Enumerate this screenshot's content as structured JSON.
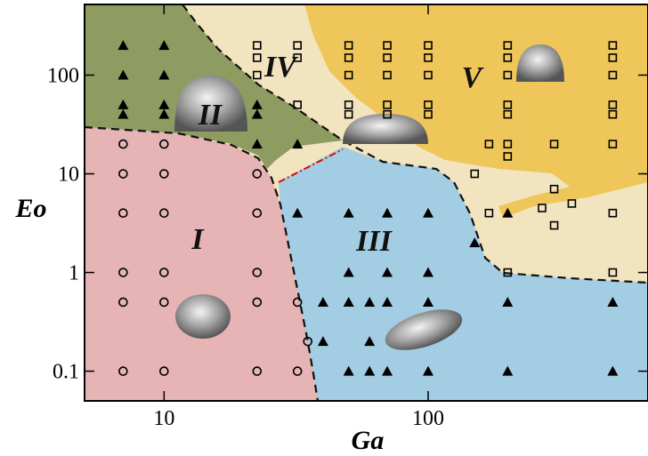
{
  "chart_data": {
    "type": "scatter",
    "x_label": "Ga",
    "y_label": "Eo",
    "xscale": "log",
    "yscale": "log",
    "xlim": [
      5,
      680
    ],
    "ylim": [
      0.05,
      520
    ],
    "xticks": [
      10,
      100
    ],
    "yticks": [
      0.1,
      1,
      10,
      100
    ],
    "annotations": [
      "I",
      "II",
      "III",
      "IV",
      "V"
    ],
    "series": [
      {
        "marker": "circle",
        "color": "#000000",
        "x": [
          7,
          7,
          7,
          7,
          7,
          7,
          10,
          10,
          10,
          10,
          10,
          10,
          22.5,
          22.5,
          22.5,
          22.5,
          22.5,
          32,
          32,
          35
        ],
        "y": [
          20,
          10,
          4,
          1,
          0.5,
          0.1,
          20,
          10,
          4,
          1,
          0.5,
          0.1,
          10,
          4,
          1,
          0.5,
          0.1,
          0.5,
          0.1,
          0.2
        ]
      },
      {
        "marker": "triangle",
        "color": "#000000",
        "x": [
          7,
          7,
          7,
          7,
          10,
          10,
          10,
          10,
          22.5,
          22.5,
          22.5,
          32,
          32,
          40,
          40,
          50,
          50,
          50,
          50,
          60,
          60,
          60,
          70,
          70,
          70,
          70,
          100,
          100,
          100,
          100,
          150,
          200,
          200,
          200,
          500,
          500
        ],
        "y": [
          200,
          100,
          50,
          40,
          200,
          100,
          50,
          40,
          50,
          40,
          20,
          20,
          4,
          0.5,
          0.2,
          4,
          1,
          0.5,
          0.1,
          0.5,
          0.2,
          0.1,
          4,
          1,
          0.5,
          0.1,
          4,
          1,
          0.5,
          0.1,
          2,
          4,
          0.5,
          0.1,
          0.5,
          0.1
        ]
      },
      {
        "marker": "square",
        "color": "#000000",
        "x": [
          22.5,
          22.5,
          22.5,
          32,
          32,
          32,
          50,
          50,
          50,
          50,
          50,
          70,
          70,
          70,
          70,
          70,
          100,
          100,
          100,
          100,
          100,
          200,
          200,
          200,
          200,
          200,
          200,
          200,
          200,
          500,
          500,
          500,
          500,
          500,
          500,
          500,
          500,
          150,
          170,
          170,
          300,
          300,
          300,
          270,
          350
        ],
        "y": [
          200,
          150,
          100,
          200,
          150,
          50,
          200,
          150,
          100,
          50,
          40,
          200,
          150,
          100,
          50,
          40,
          200,
          150,
          100,
          50,
          40,
          200,
          150,
          100,
          50,
          40,
          20,
          15,
          1,
          200,
          150,
          100,
          50,
          40,
          20,
          4,
          1,
          10,
          20,
          4,
          20,
          7,
          3,
          4.5,
          5
        ]
      }
    ]
  }
}
